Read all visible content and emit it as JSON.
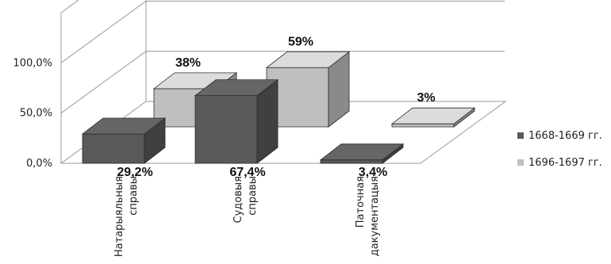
{
  "chart_data": {
    "type": "bar",
    "variant": "3d-clustered-column",
    "categories": [
      "Натарыяльныя справы",
      "Судовыя справы",
      "Паточная дакументацыя"
    ],
    "series": [
      {
        "name": "1668-1669 гг.",
        "values": [
          29.2,
          67.4,
          3.4
        ],
        "data_labels": [
          "29,2%",
          "67,4%",
          "3,4%"
        ],
        "color": "#595959"
      },
      {
        "name": "1696-1697 гг.",
        "values": [
          38,
          59,
          3
        ],
        "data_labels": [
          "38%",
          "59%",
          "3%"
        ],
        "color": "#bfbfbf"
      }
    ],
    "ylim": [
      0,
      150
    ],
    "yticks": [
      {
        "value": 0,
        "label": "0,0%"
      },
      {
        "value": 50,
        "label": "50,0%"
      },
      {
        "value": 100,
        "label": "100,0%"
      }
    ],
    "grid": true,
    "legend_position": "right"
  }
}
